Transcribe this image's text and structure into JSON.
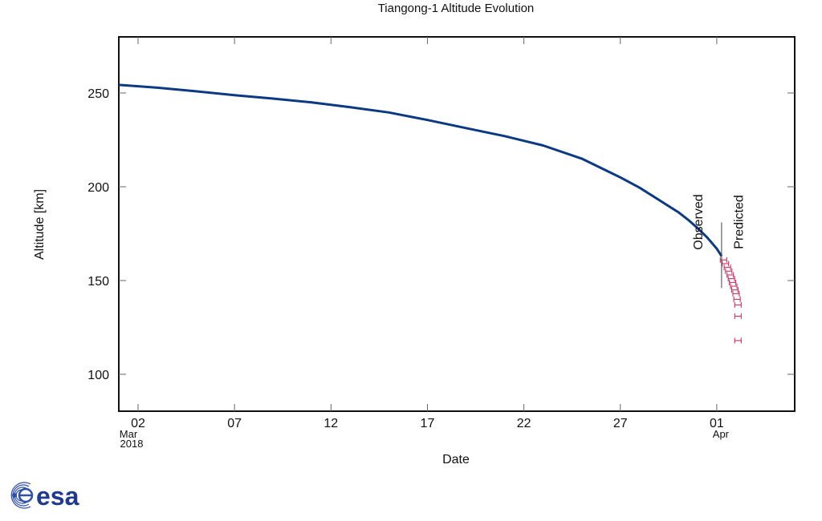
{
  "chart_data": {
    "type": "line",
    "title": "Tiangong-1 Altitude Evolution",
    "xlabel": "Date",
    "ylabel": "Altitude [km]",
    "ylim": [
      80,
      280
    ],
    "xlim": [
      "2018-03-01",
      "2018-04-05"
    ],
    "grid": false,
    "legend": null,
    "x_ticks": [
      {
        "label": "02",
        "sub": "Mar",
        "sub2": "2018",
        "day": 2
      },
      {
        "label": "07",
        "day": 7
      },
      {
        "label": "12",
        "day": 12
      },
      {
        "label": "17",
        "day": 17
      },
      {
        "label": "22",
        "day": 22
      },
      {
        "label": "27",
        "day": 27
      },
      {
        "label": "01",
        "sub": "Apr",
        "day": 32
      }
    ],
    "y_ticks": [
      100,
      150,
      200,
      250
    ],
    "annotations": [
      {
        "text": "Observed",
        "orientation": "vertical",
        "x_day": 31.0
      },
      {
        "text": "Predicted",
        "orientation": "vertical",
        "x_day": 33.1
      },
      {
        "type": "vline",
        "x_day": 32.25,
        "y_range": [
          146,
          181
        ],
        "label": "observed/predicted boundary"
      }
    ],
    "series": [
      {
        "name": "Observed",
        "color": "#0b3a82",
        "x_day": [
          1.0,
          3,
          5,
          7,
          9,
          11,
          13,
          15,
          17,
          19,
          21,
          23,
          25,
          27,
          28,
          29,
          30,
          30.5,
          31,
          31.5,
          32,
          32.25
        ],
        "values": [
          254.3,
          252.8,
          250.9,
          248.8,
          247.0,
          245.0,
          242.4,
          239.6,
          235.6,
          231.3,
          227.0,
          222.0,
          215.0,
          205.0,
          199.5,
          193.0,
          186.5,
          182.5,
          178.0,
          173.0,
          167.0,
          163.0
        ]
      },
      {
        "name": "Predicted",
        "color": "#c8325f",
        "marker": "H-errorbar",
        "x_day": [
          32.35,
          32.45,
          32.55,
          32.62,
          32.7,
          32.76,
          32.82,
          32.88,
          32.94,
          33.0,
          33.05,
          33.1,
          33.1,
          33.1
        ],
        "values": [
          161,
          159,
          157,
          155,
          153,
          151,
          149,
          147,
          145,
          143,
          140,
          137,
          131,
          118
        ]
      }
    ]
  },
  "logo": {
    "text": "esa",
    "color": "#1f3a8f"
  }
}
